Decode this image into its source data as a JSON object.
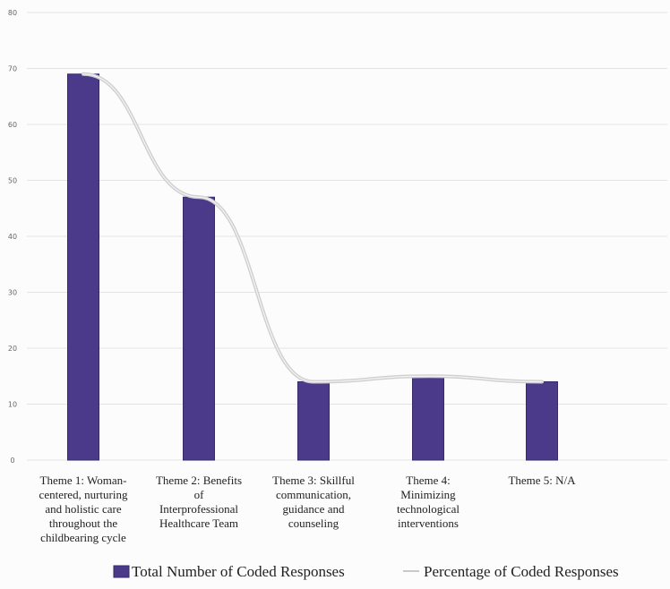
{
  "chart_data": {
    "type": "bar",
    "categories": [
      [
        "Theme 1: Woman-",
        "centered, nurturing",
        "and holistic care",
        "throughout the",
        "childbearing cycle"
      ],
      [
        "Theme 2: Benefits",
        "of",
        "Interprofessional",
        "Healthcare Team"
      ],
      [
        "Theme 3: Skillful",
        "communication,",
        "guidance and",
        "counseling"
      ],
      [
        "Theme 4:",
        "Minimizing",
        "technological",
        "interventions"
      ],
      [
        "Theme 5: N/A"
      ]
    ],
    "series": [
      {
        "name": "Total Number of Coded Responses",
        "type": "bar",
        "values": [
          69,
          47,
          14,
          15,
          14
        ],
        "color": "#4b3a8a"
      },
      {
        "name": "Percentage of Coded Responses",
        "type": "line",
        "values": [
          69,
          47,
          14,
          15,
          14
        ],
        "color": "#c6c6c6"
      }
    ],
    "yticks": [
      0,
      10,
      20,
      30,
      40,
      50,
      60,
      70,
      80
    ],
    "ylim": [
      0,
      80
    ],
    "grid": true,
    "legend_position": "bottom"
  }
}
